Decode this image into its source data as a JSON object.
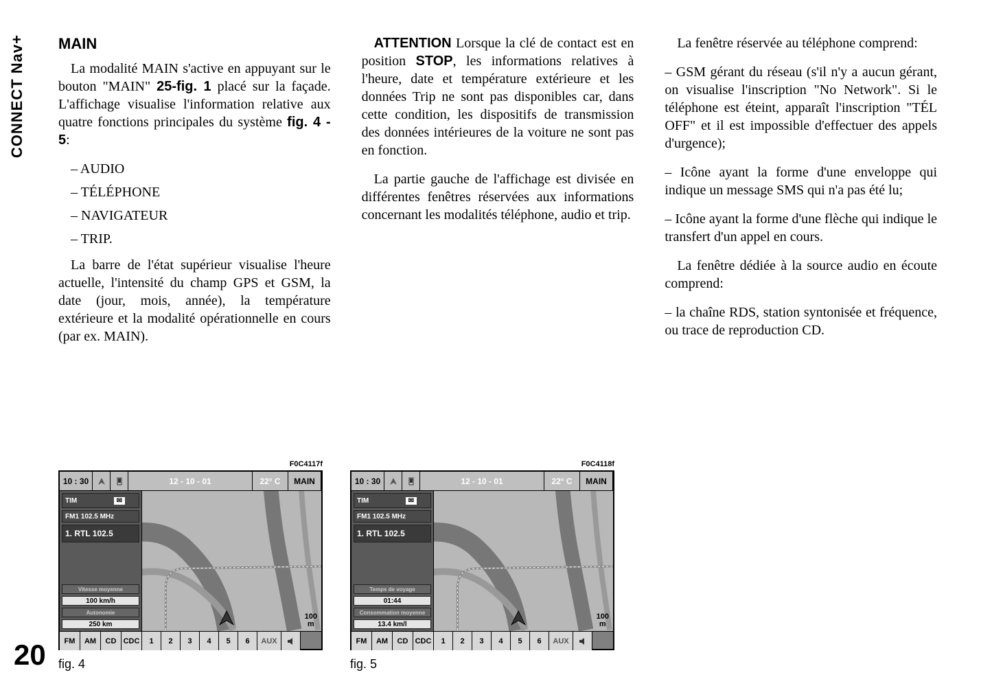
{
  "page_number": "20",
  "side_label": "CONNECT Nav+",
  "col1": {
    "heading": "MAIN",
    "p1a": "La modalité MAIN s'active en appuyant sur le bouton \"MAIN\" ",
    "p1b": "25-fig. 1",
    "p1c": " placé sur la façade. L'affichage visualise l'information relative aux quatre fonctions principales du système ",
    "p1d": "fig. 4 - 5",
    "p1e": ":",
    "items": [
      "– AUDIO",
      "– TÉLÉPHONE",
      "– NAVIGATEUR",
      "– TRIP."
    ],
    "p2": "La barre de l'état supérieur visualise l'heure actuelle, l'intensité du champ GPS et GSM, la date (jour, mois, année), la température extérieure et la modalité opérationnelle en cours (par ex. MAIN)."
  },
  "col2": {
    "p1a": "ATTENTION",
    "p1b": " Lorsque la clé de contact est en position ",
    "p1c": "STOP",
    "p1d": ", les informations relatives à l'heure, date et température extérieure et les données Trip ne sont pas disponibles car, dans cette condition, les dispositifs de transmission des données intérieures de la voiture ne sont pas en fonction.",
    "p2": "La partie gauche de l'affichage est divisée en différentes fenêtres réservées aux informations concernant les modalités téléphone, audio et trip."
  },
  "col3": {
    "p1": "La fenêtre réservée au téléphone comprend:",
    "p2": "– GSM gérant du réseau (s'il n'y a aucun gérant, on visualise l'inscription \"No Network\". Si le téléphone est éteint, apparaît l'inscription \"TÉL OFF\" et il est impossible d'effectuer des appels d'urgence);",
    "p3": "– Icône ayant la forme d'une enveloppe qui indique un message SMS qui n'a pas été lu;",
    "p4": "– Icône ayant la forme d'une flèche qui indique le transfert d'un appel en cours.",
    "p5": "La fenêtre dédiée à la source audio en écoute comprend:",
    "p6": "– la chaîne RDS, station syntonisée et fréquence, ou trace de reproduction CD."
  },
  "figs": [
    {
      "id": "F0C4117f",
      "caption": "fig. 4",
      "time": "10 : 30",
      "date": "12 - 10 - 01",
      "temp": "22° C",
      "mode": "MAIN",
      "tim": "TIM",
      "radio": "FM1   102.5  MHz",
      "station": "1. RTL 102.5",
      "lbl1": "Vitesse moyenne",
      "val1": "100 km/h",
      "lbl2": "Autonomie",
      "val2": "250 km",
      "scale_n": "100",
      "scale_u": "m",
      "sources": [
        "FM",
        "AM",
        "CD",
        "CDC"
      ],
      "nums": [
        "1",
        "2",
        "3",
        "4",
        "5",
        "6"
      ],
      "aux": "AUX"
    },
    {
      "id": "F0C4118f",
      "caption": "fig. 5",
      "time": "10 : 30",
      "date": "12 - 10 - 01",
      "temp": "22° C",
      "mode": "MAIN",
      "tim": "TIM",
      "radio": "FM1   102.5  MHz",
      "station": "1. RTL 102.5",
      "lbl1": "Temps de voyage",
      "val1": "01:44",
      "lbl2": "Consommation moyenne",
      "val2": "13.4 km/l",
      "scale_n": "100",
      "scale_u": "m",
      "sources": [
        "FM",
        "AM",
        "CD",
        "CDC"
      ],
      "nums": [
        "1",
        "2",
        "3",
        "4",
        "5",
        "6"
      ],
      "aux": "AUX"
    }
  ]
}
